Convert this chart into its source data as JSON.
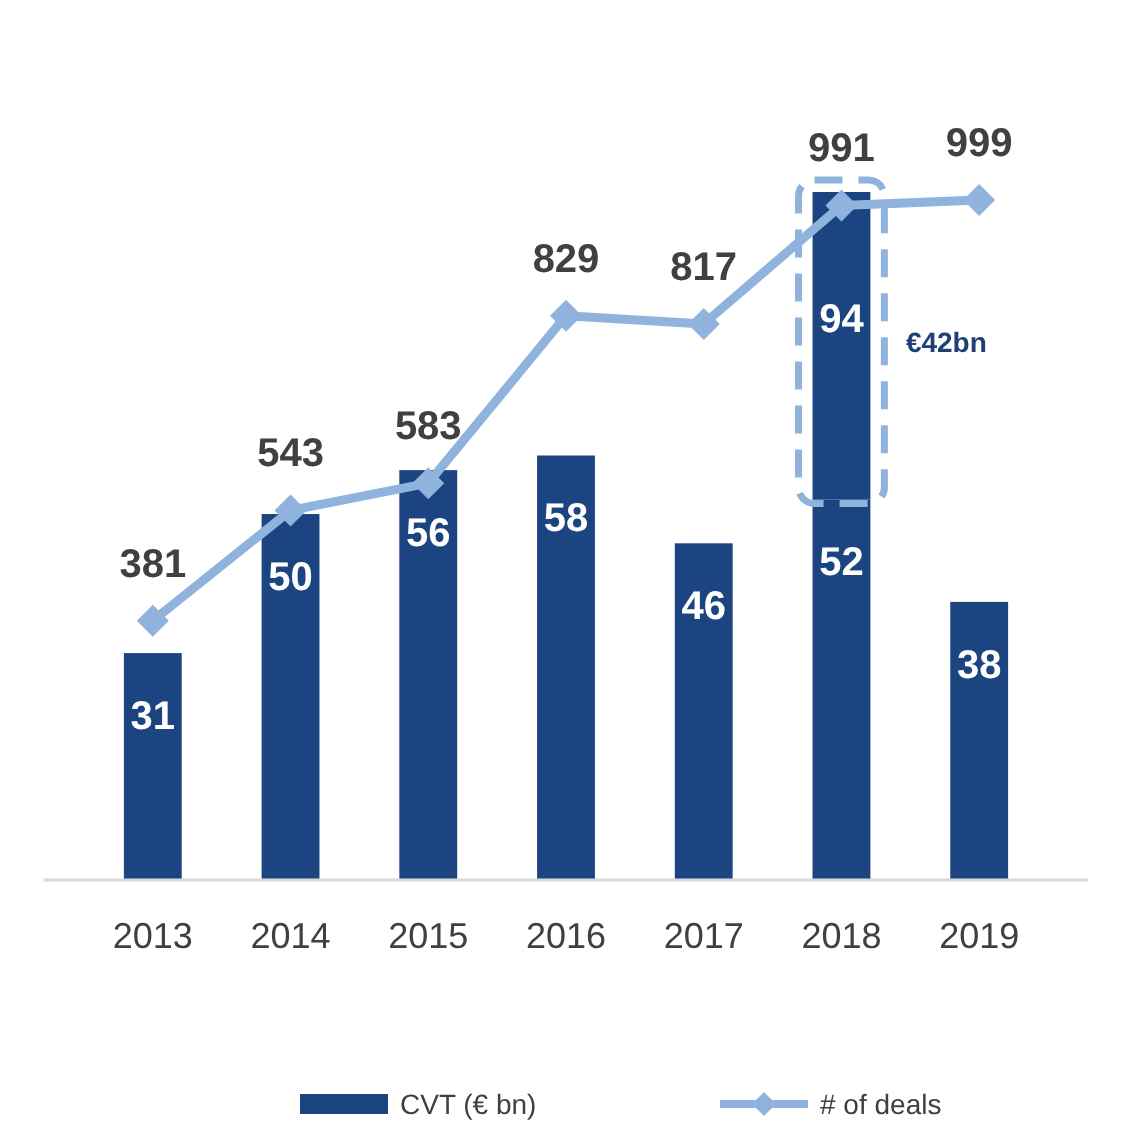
{
  "chart_data": {
    "type": "bar",
    "stacked": true,
    "categories": [
      "2013",
      "2014",
      "2015",
      "2016",
      "2017",
      "2018",
      "2019"
    ],
    "series": [
      {
        "name": "CVT (€ bn)",
        "color": "#1b4480",
        "values": [
          31,
          50,
          56,
          58,
          46,
          52,
          38
        ]
      },
      {
        "color": "#1b4480",
        "values": [
          null,
          null,
          null,
          null,
          null,
          42,
          null
        ],
        "value_labels": [
          null,
          null,
          null,
          null,
          null,
          null,
          null
        ]
      },
      {
        "name": "# of deals",
        "type": "line",
        "axis": "y2",
        "color": "#8fb3dc",
        "marker": "diamond",
        "values": [
          381,
          543,
          583,
          829,
          817,
          991,
          999
        ]
      }
    ],
    "data_labels": true,
    "totals": [
      null,
      null,
      null,
      null,
      null,
      "94",
      null
    ],
    "tick_labels": "x",
    "legend": "bottom",
    "annotations": [
      "€42bn"
    ]
  }
}
